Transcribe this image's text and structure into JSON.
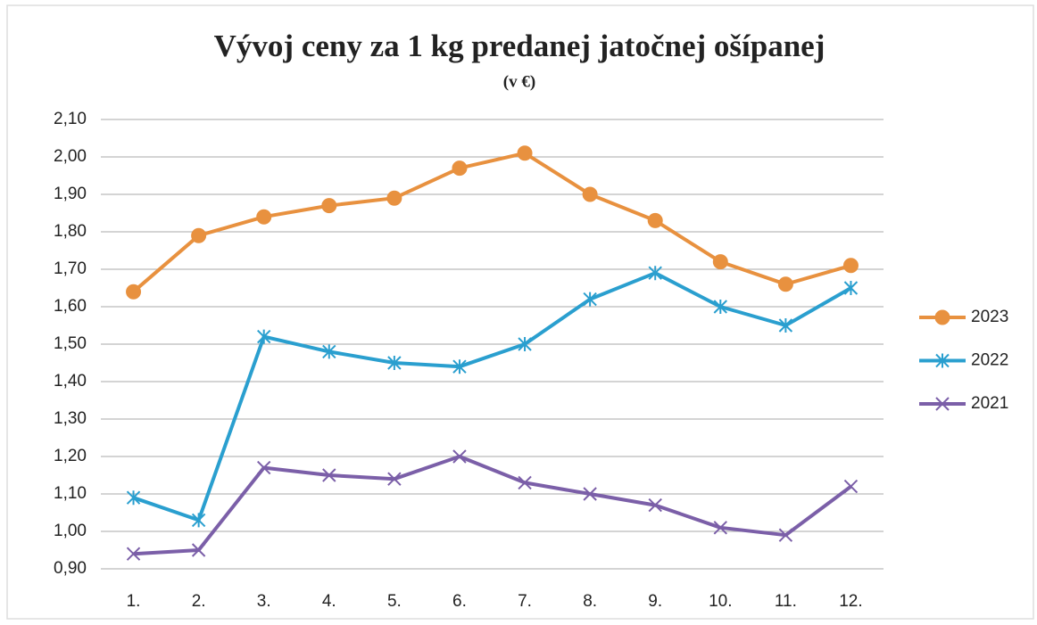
{
  "chart_data": {
    "type": "line",
    "title": "Vývoj ceny za 1 kg  predanej jatočnej ošípanej",
    "subtitle": "(v €)",
    "categories": [
      "1.",
      "2.",
      "3.",
      "4.",
      "5.",
      "6.",
      "7.",
      "8.",
      "9.",
      "10.",
      "11.",
      "12."
    ],
    "series": [
      {
        "name": "2023",
        "color": "#e8913f",
        "marker": "circle",
        "values": [
          1.64,
          1.79,
          1.84,
          1.87,
          1.89,
          1.97,
          2.01,
          1.9,
          1.83,
          1.72,
          1.66,
          1.71
        ]
      },
      {
        "name": "2022",
        "color": "#2a9fcf",
        "marker": "star",
        "values": [
          1.09,
          1.03,
          1.52,
          1.48,
          1.45,
          1.44,
          1.5,
          1.62,
          1.69,
          1.6,
          1.55,
          1.65
        ]
      },
      {
        "name": "2021",
        "color": "#7b5fa8",
        "marker": "x",
        "values": [
          0.94,
          0.95,
          1.17,
          1.15,
          1.14,
          1.2,
          1.13,
          1.1,
          1.07,
          1.01,
          0.99,
          1.12
        ]
      }
    ],
    "ylim": [
      0.9,
      2.1
    ],
    "yticks": [
      {
        "value": 0.9,
        "label": "0,90"
      },
      {
        "value": 1.0,
        "label": "1,00"
      },
      {
        "value": 1.1,
        "label": "1,10"
      },
      {
        "value": 1.2,
        "label": "1,20"
      },
      {
        "value": 1.3,
        "label": "1,30"
      },
      {
        "value": 1.4,
        "label": "1,40"
      },
      {
        "value": 1.5,
        "label": "1,50"
      },
      {
        "value": 1.6,
        "label": "1,60"
      },
      {
        "value": 1.7,
        "label": "1,70"
      },
      {
        "value": 1.8,
        "label": "1,80"
      },
      {
        "value": 1.9,
        "label": "1,90"
      },
      {
        "value": 2.0,
        "label": "2,00"
      },
      {
        "value": 2.1,
        "label": "2,10"
      }
    ],
    "grid": true,
    "legend": "right"
  }
}
